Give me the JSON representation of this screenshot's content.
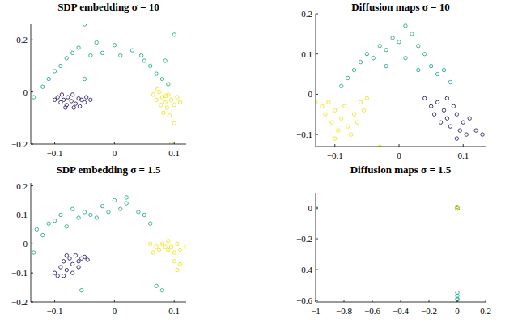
{
  "chart_data": [
    {
      "type": "scatter",
      "title": "SDP embedding σ = 10",
      "xlim": [
        -0.14,
        0.12
      ],
      "ylim": [
        -0.2,
        0.26
      ],
      "xticks": [
        {
          "value": -0.1,
          "label": "−0.1"
        },
        0,
        0.1
      ],
      "yticks": [
        {
          "value": -0.2,
          "label": "−0.2"
        },
        0,
        0.2
      ],
      "series": [
        {
          "color": "#30206f",
          "marker": "circle",
          "x": [
            -0.1,
            -0.095,
            -0.09,
            -0.085,
            -0.08,
            -0.078,
            -0.072,
            -0.07,
            -0.065,
            -0.06,
            -0.058,
            -0.055,
            -0.05,
            -0.047,
            -0.088,
            -0.082,
            -0.068,
            -0.04
          ],
          "values": [
            -0.03,
            -0.02,
            -0.04,
            -0.03,
            -0.05,
            -0.02,
            -0.035,
            -0.01,
            -0.045,
            -0.025,
            -0.055,
            -0.03,
            -0.04,
            -0.02,
            -0.01,
            -0.06,
            -0.06,
            -0.03
          ]
        },
        {
          "color": "#2aa796",
          "marker": "circle",
          "x": [
            -0.135,
            -0.12,
            -0.11,
            -0.1,
            -0.09,
            -0.08,
            -0.07,
            -0.06,
            -0.05,
            -0.04,
            -0.03,
            -0.02,
            0,
            0.01,
            0.03,
            0.045,
            0.05,
            0.06,
            0.07,
            0.08,
            0.09,
            0.1,
            0.085,
            -0.05
          ],
          "values": [
            -0.02,
            0.02,
            0.05,
            0.08,
            0.1,
            0.13,
            0.15,
            0.17,
            0.26,
            0.14,
            0.19,
            0.15,
            0.18,
            0.14,
            0.16,
            0.14,
            0.12,
            0.1,
            0.07,
            0.05,
            0.03,
            0.22,
            0.12,
            0.05
          ]
        },
        {
          "color": "#f2e41c",
          "marker": "circle",
          "x": [
            0.065,
            0.07,
            0.075,
            0.078,
            0.08,
            0.085,
            0.088,
            0.09,
            0.095,
            0.1,
            0.105,
            0.11,
            0.082,
            0.092,
            0.1,
            0.095,
            0.072,
            0.086
          ],
          "values": [
            -0.01,
            -0.03,
            0,
            -0.05,
            -0.02,
            -0.04,
            -0.06,
            -0.01,
            -0.03,
            -0.05,
            -0.02,
            -0.04,
            -0.08,
            -0.09,
            -0.12,
            -0.2,
            0.01,
            -0.015
          ]
        }
      ]
    },
    {
      "type": "scatter",
      "title": "Diffusion maps σ = 10",
      "xlim": [
        -0.13,
        0.135
      ],
      "ylim": [
        -0.13,
        0.2
      ],
      "xticks": [
        {
          "value": -0.1,
          "label": "−0.1"
        },
        0,
        0.1
      ],
      "yticks": [
        {
          "value": -0.1,
          "label": "−0.1"
        },
        0,
        0.1,
        0.2
      ],
      "series": [
        {
          "color": "#30206f",
          "marker": "circle",
          "x": [
            0.04,
            0.05,
            0.055,
            0.06,
            0.065,
            0.07,
            0.075,
            0.08,
            0.085,
            0.09,
            0.095,
            0.1,
            0.105,
            0.11,
            0.12,
            0.13,
            0.075,
            0.09
          ],
          "values": [
            -0.01,
            -0.03,
            -0.05,
            -0.02,
            -0.07,
            -0.04,
            -0.06,
            -0.08,
            -0.03,
            -0.05,
            -0.09,
            -0.07,
            -0.1,
            -0.06,
            -0.09,
            -0.1,
            -0.01,
            -0.11
          ]
        },
        {
          "color": "#2aa796",
          "marker": "circle",
          "x": [
            -0.09,
            -0.08,
            -0.07,
            -0.06,
            -0.05,
            -0.04,
            -0.03,
            -0.02,
            -0.01,
            0,
            0.01,
            0.02,
            0.03,
            0.04,
            0.05,
            0.06,
            0.07,
            0.08,
            -0.02,
            0.03,
            0.01
          ],
          "values": [
            0.02,
            0.04,
            0.06,
            0.08,
            0.1,
            0.09,
            0.12,
            0.11,
            0.14,
            0.13,
            0.17,
            0.15,
            0.12,
            0.1,
            0.07,
            0.05,
            0.06,
            0.03,
            0.07,
            0.06,
            0.09
          ]
        },
        {
          "color": "#f2e41c",
          "marker": "circle",
          "x": [
            -0.13,
            -0.12,
            -0.115,
            -0.11,
            -0.105,
            -0.1,
            -0.095,
            -0.09,
            -0.085,
            -0.08,
            -0.075,
            -0.07,
            -0.065,
            -0.06,
            -0.055,
            -0.05,
            -0.1,
            -0.03
          ],
          "values": [
            -0.02,
            -0.03,
            -0.05,
            -0.02,
            -0.07,
            -0.04,
            -0.09,
            -0.06,
            -0.03,
            -0.08,
            -0.1,
            -0.05,
            -0.07,
            -0.02,
            -0.04,
            -0.01,
            -0.11,
            -0.13
          ]
        }
      ]
    },
    {
      "type": "scatter",
      "title": "SDP embedding σ = 1.5",
      "xlim": [
        -0.14,
        0.12
      ],
      "ylim": [
        -0.2,
        0.21
      ],
      "xticks": [
        {
          "value": -0.1,
          "label": "−0.1"
        },
        0,
        0.1
      ],
      "yticks": [
        {
          "value": -0.2,
          "label": "−0.2"
        },
        {
          "value": -0.1,
          "label": "−0.1"
        },
        0,
        0.1,
        0.2
      ],
      "series": [
        {
          "color": "#30206f",
          "marker": "circle",
          "x": [
            -0.1,
            -0.09,
            -0.085,
            -0.08,
            -0.075,
            -0.07,
            -0.065,
            -0.06,
            -0.055,
            -0.05,
            -0.045,
            -0.07,
            -0.095,
            -0.08,
            -0.06,
            -0.085
          ],
          "values": [
            -0.1,
            -0.08,
            -0.06,
            -0.09,
            -0.05,
            -0.07,
            -0.04,
            -0.06,
            -0.05,
            -0.045,
            -0.055,
            -0.1,
            -0.11,
            -0.04,
            -0.08,
            -0.11
          ]
        },
        {
          "color": "#2aa796",
          "marker": "circle",
          "x": [
            -0.13,
            -0.12,
            -0.11,
            -0.1,
            -0.09,
            -0.08,
            -0.07,
            -0.06,
            -0.05,
            -0.04,
            -0.03,
            -0.02,
            -0.01,
            0,
            0.01,
            0.02,
            0.04,
            0.06,
            0.05,
            -0.135,
            0.07,
            0.08,
            -0.055,
            0.02
          ],
          "values": [
            0.05,
            0.03,
            0.07,
            0.08,
            0.1,
            0.06,
            0.12,
            0.09,
            0.11,
            0.1,
            0.09,
            0.13,
            0.11,
            0.15,
            0.12,
            0.14,
            0.11,
            0.07,
            0.1,
            -0.03,
            -0.145,
            -0.16,
            -0.16,
            0.16
          ]
        },
        {
          "color": "#f2e41c",
          "marker": "circle",
          "x": [
            0.06,
            0.07,
            0.075,
            0.08,
            0.085,
            0.09,
            0.095,
            0.1,
            0.105,
            0.11,
            0.1,
            0.11,
            0.12,
            0.065,
            0.09,
            0.105
          ],
          "values": [
            0,
            -0.01,
            -0.02,
            0,
            -0.01,
            -0.02,
            -0.01,
            -0.03,
            0,
            -0.02,
            -0.06,
            -0.07,
            -0.01,
            -0.03,
            0.01,
            -0.09
          ]
        }
      ]
    },
    {
      "type": "scatter",
      "title": "Diffusion maps σ = 1.5",
      "xlim": [
        -1,
        0.2
      ],
      "ylim": [
        -0.61,
        0.1
      ],
      "xticks": [
        {
          "value": -1,
          "label": "−1"
        },
        {
          "value": -0.8,
          "label": "−0.8"
        },
        {
          "value": -0.6,
          "label": "−0.6"
        },
        {
          "value": -0.4,
          "label": "−0.4"
        },
        {
          "value": -0.2,
          "label": "−0.2"
        },
        0,
        0.2
      ],
      "yticks": [
        {
          "value": -0.6,
          "label": "−0.6"
        },
        {
          "value": -0.4,
          "label": "−0.4"
        },
        {
          "value": -0.2,
          "label": "−0.2"
        },
        0
      ],
      "series": [
        {
          "color": "#30206f",
          "marker": "circle",
          "x": [
            0,
            0,
            0.002
          ],
          "values": [
            0,
            0.005,
            -0.003
          ]
        },
        {
          "color": "#2aa796",
          "marker": "circle",
          "x": [
            -1,
            0,
            0,
            0,
            0.001,
            0,
            -0.003
          ],
          "values": [
            0,
            -0.55,
            -0.57,
            -0.59,
            -0.595,
            0.002,
            0
          ]
        },
        {
          "color": "#f2e41c",
          "marker": "circle",
          "x": [
            0,
            0.003,
            -0.002
          ],
          "values": [
            0,
            0.002,
            0.001
          ]
        }
      ]
    }
  ]
}
